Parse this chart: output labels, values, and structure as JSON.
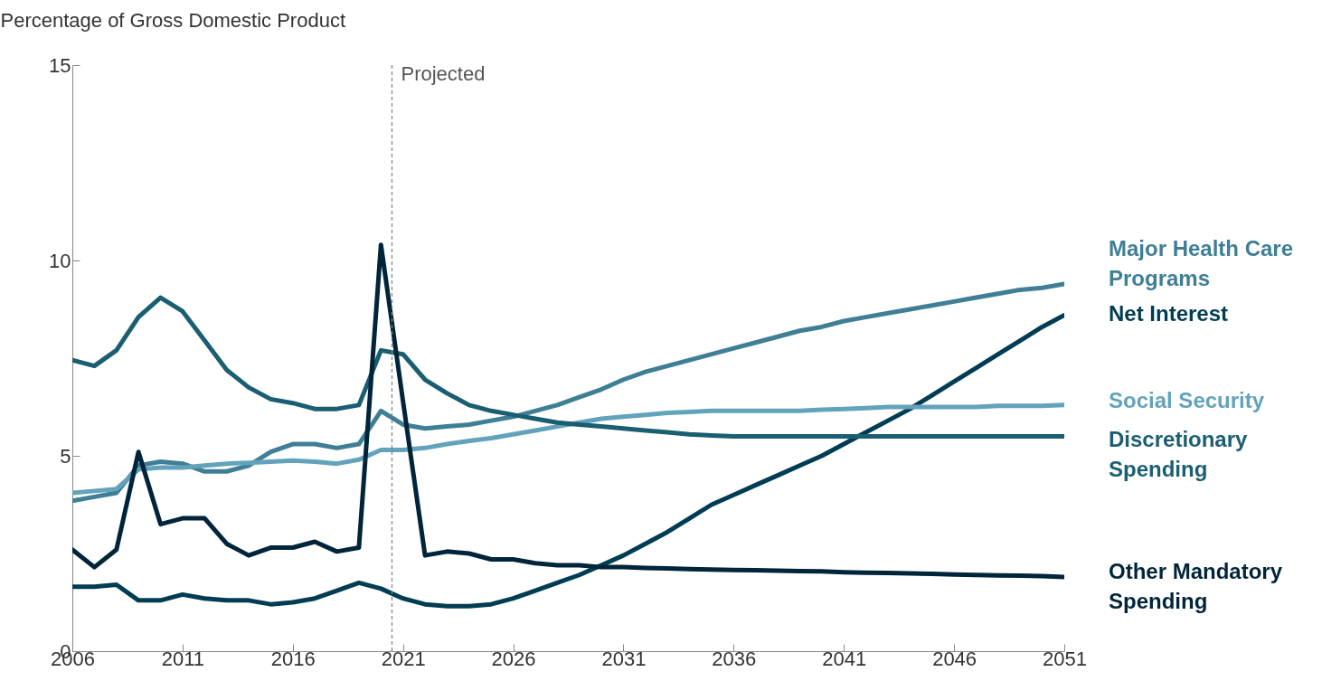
{
  "chart_data": {
    "type": "line",
    "ylabel": "Percentage of Gross Domestic Product",
    "x": [
      2006,
      2007,
      2008,
      2009,
      2010,
      2011,
      2012,
      2013,
      2014,
      2015,
      2016,
      2017,
      2018,
      2019,
      2020,
      2021,
      2022,
      2023,
      2024,
      2025,
      2026,
      2027,
      2028,
      2029,
      2030,
      2031,
      2032,
      2033,
      2034,
      2035,
      2036,
      2037,
      2038,
      2039,
      2040,
      2041,
      2042,
      2043,
      2044,
      2045,
      2046,
      2047,
      2048,
      2049,
      2050,
      2051
    ],
    "series": [
      {
        "name": "Major Health Care Programs",
        "color": "#3f7f96",
        "values": [
          3.85,
          3.95,
          4.05,
          4.75,
          4.85,
          4.8,
          4.6,
          4.6,
          4.75,
          5.1,
          5.3,
          5.3,
          5.2,
          5.3,
          6.15,
          5.8,
          5.7,
          5.75,
          5.8,
          5.9,
          6.0,
          6.15,
          6.3,
          6.5,
          6.7,
          6.95,
          7.15,
          7.3,
          7.45,
          7.6,
          7.75,
          7.9,
          8.05,
          8.2,
          8.3,
          8.45,
          8.55,
          8.65,
          8.75,
          8.85,
          8.95,
          9.05,
          9.15,
          9.25,
          9.3,
          9.4
        ]
      },
      {
        "name": "Net Interest",
        "color": "#003d53",
        "values": [
          1.65,
          1.65,
          1.7,
          1.3,
          1.3,
          1.45,
          1.35,
          1.3,
          1.3,
          1.2,
          1.25,
          1.35,
          1.55,
          1.75,
          1.6,
          1.35,
          1.2,
          1.15,
          1.15,
          1.2,
          1.35,
          1.55,
          1.75,
          1.95,
          2.2,
          2.45,
          2.75,
          3.05,
          3.4,
          3.75,
          4.0,
          4.25,
          4.5,
          4.75,
          5.0,
          5.3,
          5.6,
          5.9,
          6.2,
          6.55,
          6.9,
          7.25,
          7.6,
          7.95,
          8.3,
          8.6
        ]
      },
      {
        "name": "Social Security",
        "color": "#62a3bb",
        "values": [
          4.05,
          4.1,
          4.15,
          4.65,
          4.7,
          4.7,
          4.75,
          4.8,
          4.82,
          4.85,
          4.88,
          4.85,
          4.8,
          4.9,
          5.15,
          5.15,
          5.2,
          5.3,
          5.38,
          5.45,
          5.55,
          5.65,
          5.75,
          5.85,
          5.95,
          6.0,
          6.05,
          6.1,
          6.12,
          6.15,
          6.15,
          6.15,
          6.15,
          6.15,
          6.18,
          6.2,
          6.22,
          6.25,
          6.25,
          6.25,
          6.25,
          6.25,
          6.28,
          6.28,
          6.28,
          6.3
        ]
      },
      {
        "name": "Discretionary Spending",
        "color": "#1a5e72",
        "values": [
          7.45,
          7.3,
          7.7,
          8.55,
          9.05,
          8.7,
          7.95,
          7.2,
          6.75,
          6.45,
          6.35,
          6.2,
          6.2,
          6.3,
          7.7,
          7.6,
          6.95,
          6.6,
          6.3,
          6.15,
          6.05,
          5.95,
          5.85,
          5.8,
          5.75,
          5.7,
          5.65,
          5.6,
          5.55,
          5.52,
          5.5,
          5.5,
          5.5,
          5.5,
          5.5,
          5.5,
          5.5,
          5.5,
          5.5,
          5.5,
          5.5,
          5.5,
          5.5,
          5.5,
          5.5,
          5.5
        ]
      },
      {
        "name": "Other Mandatory Spending",
        "color": "#00253a",
        "values": [
          2.6,
          2.15,
          2.6,
          5.1,
          3.25,
          3.4,
          3.4,
          2.75,
          2.45,
          2.65,
          2.65,
          2.8,
          2.55,
          2.65,
          10.4,
          6.4,
          2.45,
          2.55,
          2.5,
          2.35,
          2.35,
          2.25,
          2.2,
          2.2,
          2.15,
          2.15,
          2.13,
          2.12,
          2.1,
          2.09,
          2.08,
          2.07,
          2.06,
          2.05,
          2.04,
          2.02,
          2.01,
          2.0,
          1.99,
          1.98,
          1.96,
          1.95,
          1.94,
          1.93,
          1.92,
          1.9
        ]
      }
    ],
    "xlim": [
      2006,
      2051
    ],
    "xticks": [
      2006,
      2011,
      2016,
      2021,
      2026,
      2031,
      2036,
      2041,
      2046,
      2051
    ],
    "ylim": [
      0,
      15
    ],
    "yticks": [
      0,
      5,
      10,
      15
    ],
    "grid": false,
    "line_style": "solid",
    "ref_lines": [
      {
        "axis": "x",
        "value": 2020.5,
        "label": "Projected",
        "color": "#808080",
        "line_style": "dashed"
      }
    ]
  }
}
